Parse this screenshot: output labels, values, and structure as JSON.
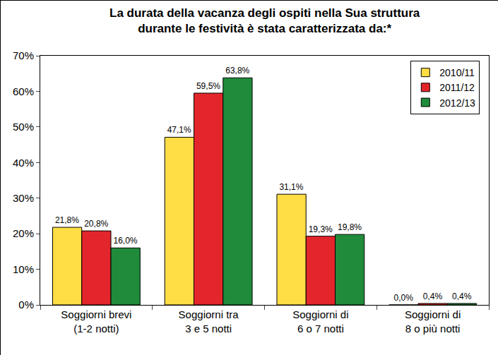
{
  "chart_data": {
    "type": "bar",
    "title": "La durata della vacanza degli ospiti nella Sua struttura\ndurante le festività è stata caratterizzata da:*",
    "categories": [
      "Soggiorni brevi\n(1-2 notti)",
      "Soggiorni tra\n3 e 5 notti",
      "Soggiorni di\n6 o 7 notti",
      "Soggiorni di\n8 o più notti"
    ],
    "series": [
      {
        "name": "2010/11",
        "color": "#FFDD44",
        "values": [
          21.8,
          47.1,
          31.1,
          0.0
        ],
        "value_labels": [
          "21,8%",
          "47,1%",
          "31,1%",
          "0,0%"
        ]
      },
      {
        "name": "2011/12",
        "color": "#E3262B",
        "values": [
          20.8,
          59.5,
          19.3,
          0.4
        ],
        "value_labels": [
          "20,8%",
          "59,5%",
          "19,3%",
          "0,4%"
        ]
      },
      {
        "name": "2012/13",
        "color": "#1F8B3B",
        "values": [
          16.0,
          63.8,
          19.8,
          0.4
        ],
        "value_labels": [
          "16,0%",
          "63,8%",
          "19,8%",
          "0,4%"
        ]
      }
    ],
    "ylim": [
      0,
      70
    ],
    "yticks": [
      {
        "value": 0,
        "label": "0%"
      },
      {
        "value": 10,
        "label": "10%"
      },
      {
        "value": 20,
        "label": "20%"
      },
      {
        "value": 30,
        "label": "30%"
      },
      {
        "value": 40,
        "label": "40%"
      },
      {
        "value": 50,
        "label": "50%"
      },
      {
        "value": 60,
        "label": "60%"
      },
      {
        "value": 70,
        "label": "70%"
      }
    ],
    "grid": false,
    "legend": "top right",
    "data_labels": true
  }
}
